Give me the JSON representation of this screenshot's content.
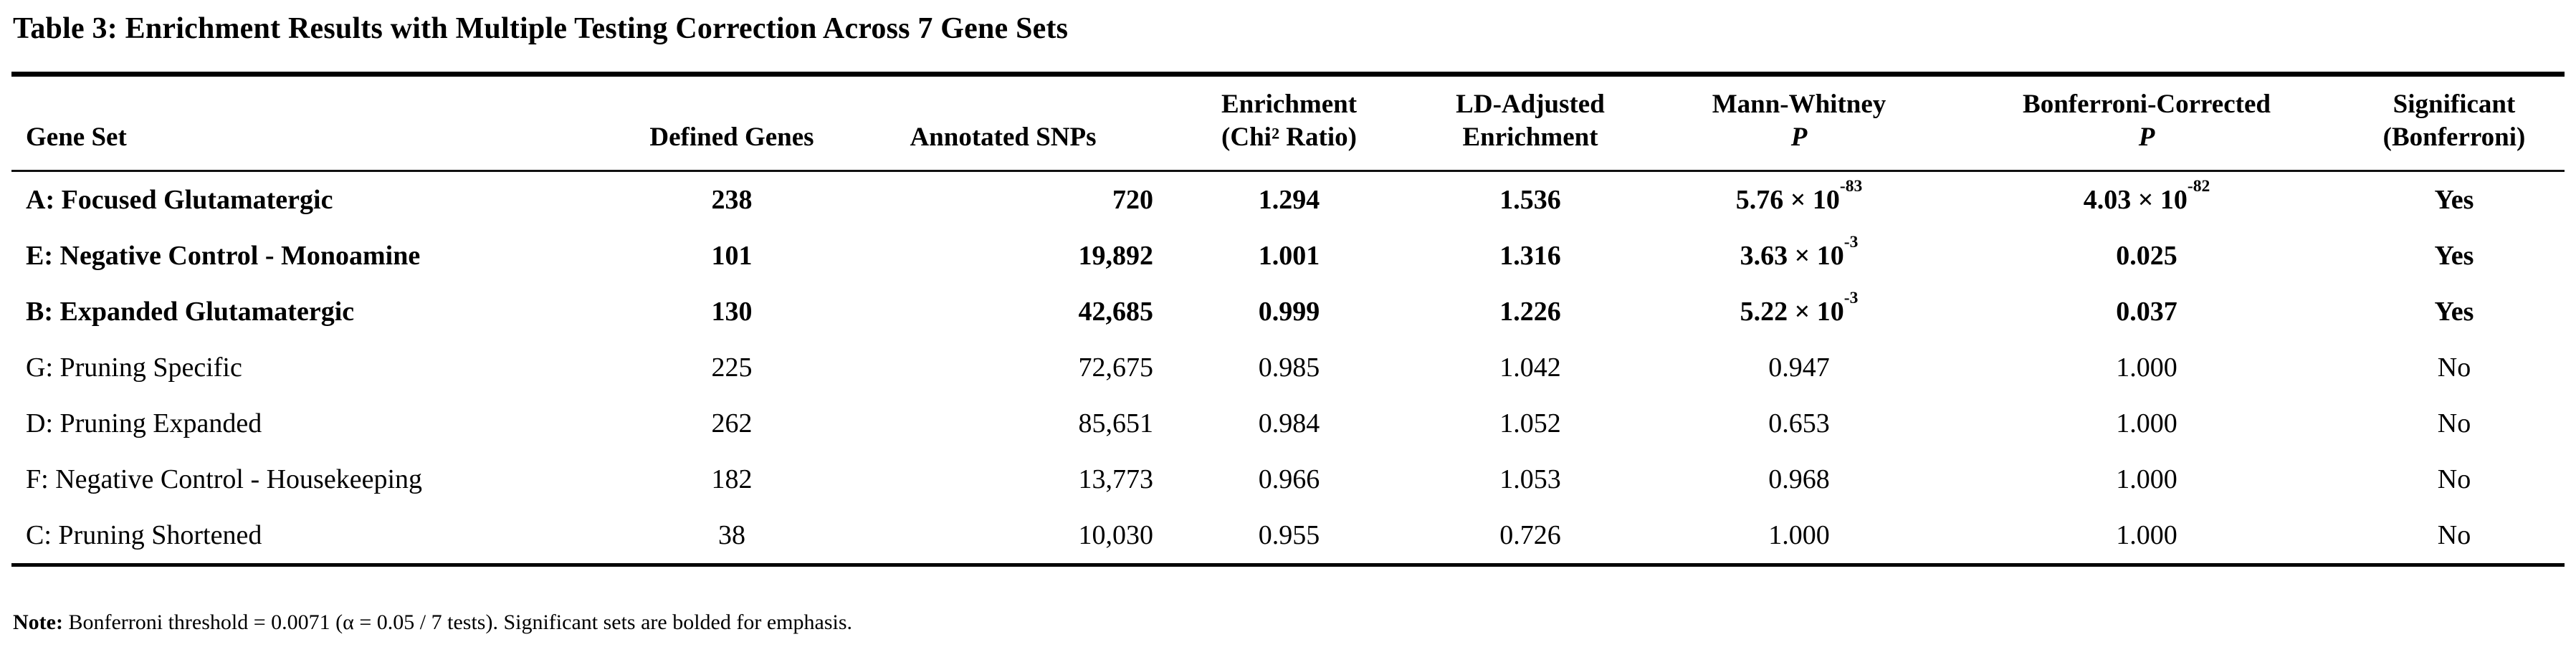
{
  "title": "Table 3: Enrichment Results with Multiple Testing Correction Across 7 Gene Sets",
  "table": {
    "columns": [
      {
        "id": "gene-set",
        "header_lines": [
          "Gene Set"
        ],
        "align": "left",
        "header_align": "left"
      },
      {
        "id": "defined-genes",
        "header_lines": [
          "Defined Genes"
        ],
        "align": "center",
        "header_align": "center"
      },
      {
        "id": "annotated-snps",
        "header_lines": [
          "Annotated SNPs"
        ],
        "align": "right",
        "header_align": "center"
      },
      {
        "id": "enrichment-chi2",
        "header_lines": [
          "Enrichment",
          "(Chi² Ratio)"
        ],
        "align": "center",
        "header_align": "center"
      },
      {
        "id": "ld-adjusted",
        "header_lines": [
          "LD-Adjusted",
          "Enrichment"
        ],
        "align": "center",
        "header_align": "center"
      },
      {
        "id": "mann-whitney-p",
        "header_lines": [
          "Mann-Whitney",
          {
            "text": "P",
            "italic": true
          }
        ],
        "align": "center",
        "header_align": "center"
      },
      {
        "id": "bonferroni-p",
        "header_lines": [
          "Bonferroni-Corrected",
          {
            "text": "P",
            "italic": true
          }
        ],
        "align": "center",
        "header_align": "center"
      },
      {
        "id": "significant",
        "header_lines": [
          "Significant",
          "(Bonferroni)"
        ],
        "align": "center",
        "header_align": "center"
      }
    ],
    "rows": [
      {
        "bold": true,
        "cells": [
          "A: Focused Glutamatergic",
          "238",
          "720",
          "1.294",
          "1.536",
          "5.76 × 10^-83",
          "4.03 × 10^-82",
          "Yes"
        ]
      },
      {
        "bold": true,
        "cells": [
          "E: Negative Control - Monoamine",
          "101",
          "19,892",
          "1.001",
          "1.316",
          "3.63 × 10^-3",
          "0.025",
          "Yes"
        ]
      },
      {
        "bold": true,
        "cells": [
          "B: Expanded Glutamatergic",
          "130",
          "42,685",
          "0.999",
          "1.226",
          "5.22 × 10^-3",
          "0.037",
          "Yes"
        ]
      },
      {
        "bold": false,
        "cells": [
          "G: Pruning Specific",
          "225",
          "72,675",
          "0.985",
          "1.042",
          "0.947",
          "1.000",
          "No"
        ]
      },
      {
        "bold": false,
        "cells": [
          "D: Pruning Expanded",
          "262",
          "85,651",
          "0.984",
          "1.052",
          "0.653",
          "1.000",
          "No"
        ]
      },
      {
        "bold": false,
        "cells": [
          "F: Negative Control - Housekeeping",
          "182",
          "13,773",
          "0.966",
          "1.053",
          "0.968",
          "1.000",
          "No"
        ]
      },
      {
        "bold": false,
        "cells": [
          "C: Pruning Shortened",
          "38",
          "10,030",
          "0.955",
          "0.726",
          "1.000",
          "1.000",
          "No"
        ]
      }
    ]
  },
  "note": {
    "label": "Note:",
    "text": "Bonferroni threshold = 0.0071 (α = 0.05 / 7 tests). Significant sets are bolded for emphasis."
  },
  "colors": {
    "text": "#000000",
    "rule": "#000000",
    "background": "#ffffff"
  }
}
